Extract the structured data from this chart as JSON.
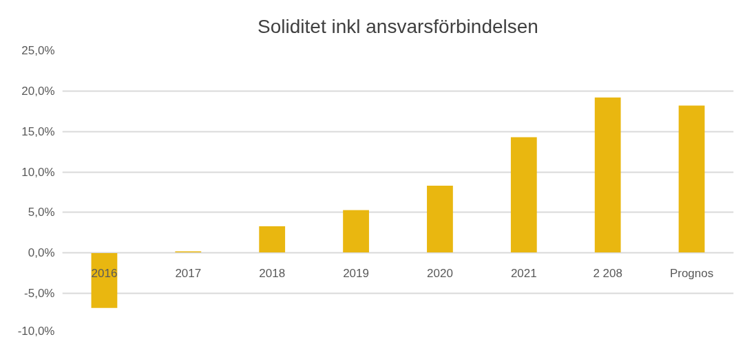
{
  "chart_data": {
    "type": "bar",
    "title": "Soliditet inkl ansvarsförbindelsen",
    "categories": [
      "2016",
      "2017",
      "2018",
      "2019",
      "2020",
      "2021",
      "2 208",
      "Prognos"
    ],
    "values": [
      -6.8,
      0.2,
      3.3,
      5.3,
      8.3,
      14.3,
      19.2,
      18.2
    ],
    "color": "#e9b710",
    "ylim": [
      -10,
      25
    ],
    "yticks": [
      {
        "value": -10,
        "label": "-10,0%"
      },
      {
        "value": -5,
        "label": "-5,0%"
      },
      {
        "value": 0,
        "label": "0,0%"
      },
      {
        "value": 5,
        "label": "5,0%"
      },
      {
        "value": 10,
        "label": "10,0%"
      },
      {
        "value": 15,
        "label": "15,0%"
      },
      {
        "value": 20,
        "label": "20,0%"
      },
      {
        "value": 25,
        "label": "25,0%"
      }
    ],
    "grid": "y"
  }
}
